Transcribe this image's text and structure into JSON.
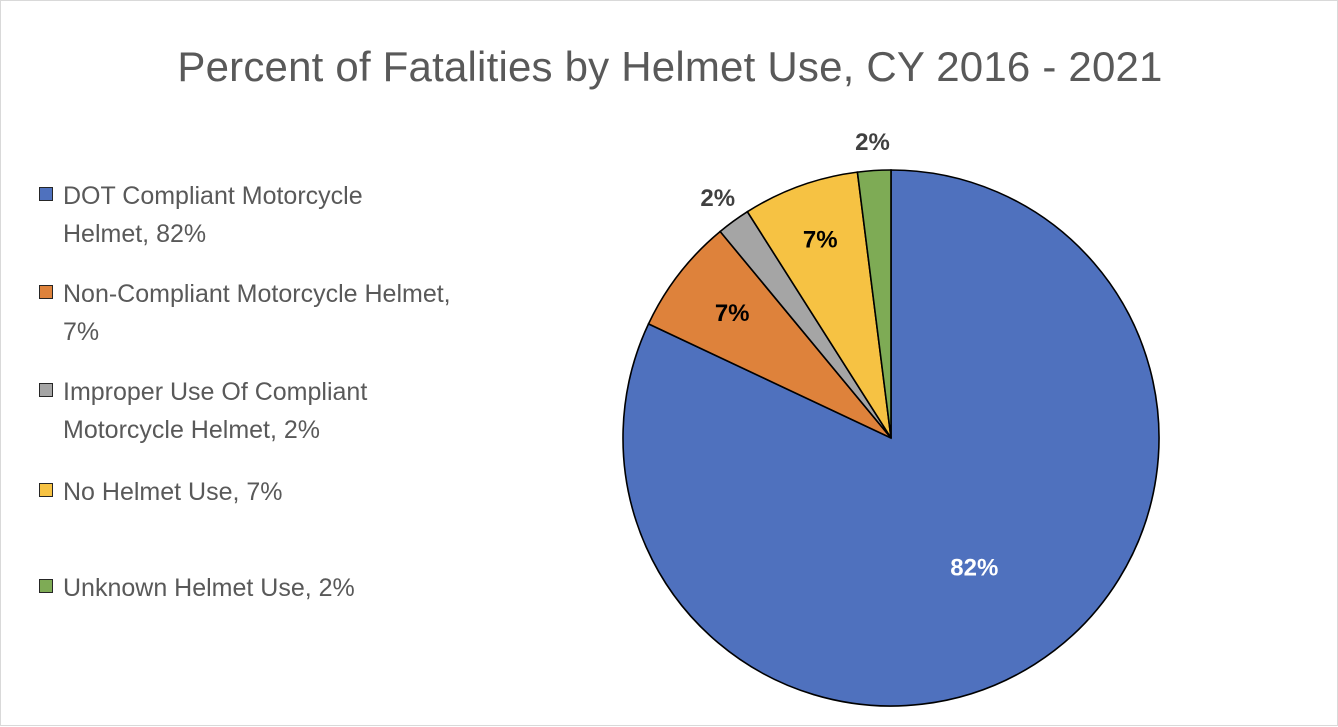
{
  "chart_data": {
    "type": "pie",
    "title": "Percent of Fatalities by Helmet Use, CY 2016 - 2021",
    "legend_position": "left",
    "slices": [
      {
        "name": "DOT Compliant Motorcycle Helmet",
        "value": 82,
        "label": "82%",
        "legend": "DOT Compliant Motorcycle Helmet, 82%",
        "color": "#4F71BE"
      },
      {
        "name": "Non-Compliant Motorcycle Helmet",
        "value": 7,
        "label": "7%",
        "legend": "Non-Compliant Motorcycle Helmet, 7%",
        "color": "#DE823B"
      },
      {
        "name": "Improper Use Of Compliant Motorcycle Helmet",
        "value": 2,
        "label": "2%",
        "legend": "Improper Use Of Compliant Motorcycle Helmet, 2%",
        "color": "#A5A5A5"
      },
      {
        "name": "No Helmet Use",
        "value": 7,
        "label": "7%",
        "legend": "No Helmet Use, 7%",
        "color": "#F6C243"
      },
      {
        "name": "Unknown Helmet Use",
        "value": 2,
        "label": "2%",
        "legend": "Unknown Helmet Use, 2%",
        "color": "#7EAB55"
      }
    ],
    "label_colors": [
      "#FFFFFF",
      "#000000",
      "#404040",
      "#000000",
      "#404040"
    ]
  }
}
